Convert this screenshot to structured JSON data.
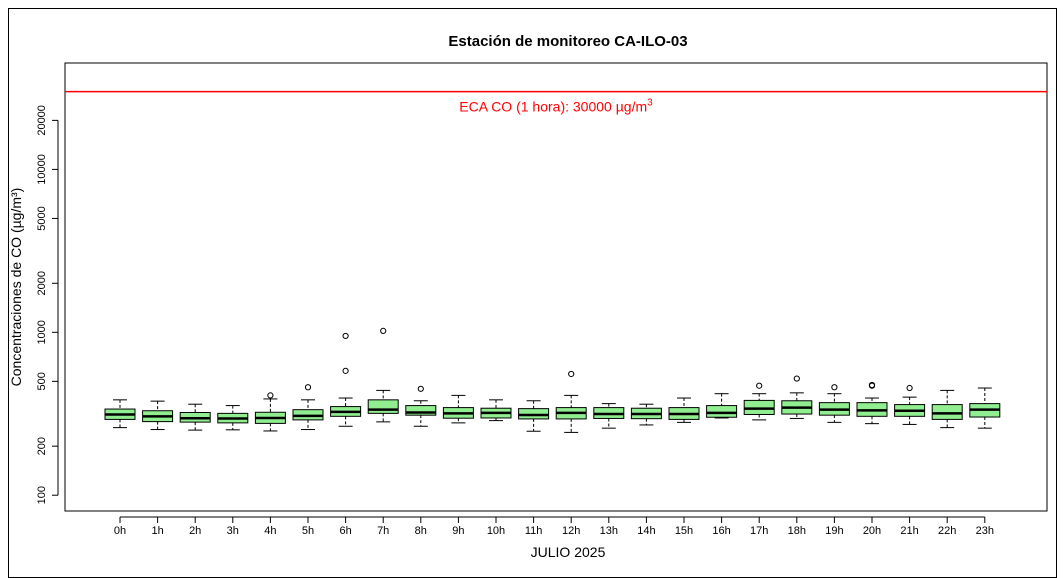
{
  "chart_data": {
    "type": "box",
    "title": "Estación de monitoreo CA-ILO-03",
    "xlabel": "JULIO 2025",
    "ylabel": "Concentraciones de CO (µg/m³)",
    "y_scale": "log",
    "ylim": [
      80,
      45000
    ],
    "yticks": [
      100,
      200,
      500,
      1000,
      2000,
      5000,
      10000,
      20000
    ],
    "grid": false,
    "box_color": "#90ee90",
    "reference_line": {
      "value": 30000,
      "color": "#ff0000",
      "label_main": "ECA CO (1 hora): 30000 µg/m",
      "label_sup": "3"
    },
    "categories": [
      "0h",
      "1h",
      "2h",
      "3h",
      "4h",
      "5h",
      "6h",
      "7h",
      "8h",
      "9h",
      "10h",
      "11h",
      "12h",
      "13h",
      "14h",
      "15h",
      "16h",
      "17h",
      "18h",
      "19h",
      "20h",
      "21h",
      "22h",
      "23h"
    ],
    "boxes": [
      {
        "min": 260,
        "q1": 292,
        "median": 313,
        "q3": 338,
        "max": 385,
        "outliers": []
      },
      {
        "min": 253,
        "q1": 283,
        "median": 305,
        "q3": 330,
        "max": 378,
        "outliers": []
      },
      {
        "min": 251,
        "q1": 281,
        "median": 297,
        "q3": 322,
        "max": 362,
        "outliers": []
      },
      {
        "min": 252,
        "q1": 278,
        "median": 296,
        "q3": 318,
        "max": 355,
        "outliers": []
      },
      {
        "min": 248,
        "q1": 276,
        "median": 298,
        "q3": 323,
        "max": 390,
        "outliers": [
          410
        ]
      },
      {
        "min": 253,
        "q1": 290,
        "median": 307,
        "q3": 335,
        "max": 385,
        "outliers": [
          460
        ]
      },
      {
        "min": 265,
        "q1": 305,
        "median": 325,
        "q3": 350,
        "max": 395,
        "outliers": [
          580,
          950
        ]
      },
      {
        "min": 282,
        "q1": 318,
        "median": 335,
        "q3": 385,
        "max": 440,
        "outliers": [
          1020
        ]
      },
      {
        "min": 265,
        "q1": 310,
        "median": 322,
        "q3": 355,
        "max": 380,
        "outliers": [
          450
        ]
      },
      {
        "min": 278,
        "q1": 297,
        "median": 318,
        "q3": 345,
        "max": 410,
        "outliers": []
      },
      {
        "min": 287,
        "q1": 298,
        "median": 320,
        "q3": 342,
        "max": 385,
        "outliers": []
      },
      {
        "min": 247,
        "q1": 294,
        "median": 311,
        "q3": 340,
        "max": 380,
        "outliers": []
      },
      {
        "min": 243,
        "q1": 294,
        "median": 320,
        "q3": 345,
        "max": 410,
        "outliers": [
          555
        ]
      },
      {
        "min": 258,
        "q1": 296,
        "median": 315,
        "q3": 345,
        "max": 365,
        "outliers": []
      },
      {
        "min": 270,
        "q1": 295,
        "median": 315,
        "q3": 342,
        "max": 362,
        "outliers": []
      },
      {
        "min": 280,
        "q1": 292,
        "median": 315,
        "q3": 345,
        "max": 395,
        "outliers": []
      },
      {
        "min": 298,
        "q1": 301,
        "median": 320,
        "q3": 355,
        "max": 420,
        "outliers": []
      },
      {
        "min": 290,
        "q1": 313,
        "median": 340,
        "q3": 382,
        "max": 420,
        "outliers": [
          470
        ]
      },
      {
        "min": 296,
        "q1": 315,
        "median": 345,
        "q3": 380,
        "max": 425,
        "outliers": [
          520
        ]
      },
      {
        "min": 280,
        "q1": 310,
        "median": 335,
        "q3": 370,
        "max": 420,
        "outliers": [
          460
        ]
      },
      {
        "min": 275,
        "q1": 305,
        "median": 332,
        "q3": 370,
        "max": 395,
        "outliers": [
          470,
          475
        ]
      },
      {
        "min": 272,
        "q1": 305,
        "median": 330,
        "q3": 360,
        "max": 400,
        "outliers": [
          455
        ]
      },
      {
        "min": 260,
        "q1": 292,
        "median": 318,
        "q3": 360,
        "max": 440,
        "outliers": []
      },
      {
        "min": 258,
        "q1": 302,
        "median": 335,
        "q3": 365,
        "max": 455,
        "outliers": []
      }
    ]
  }
}
